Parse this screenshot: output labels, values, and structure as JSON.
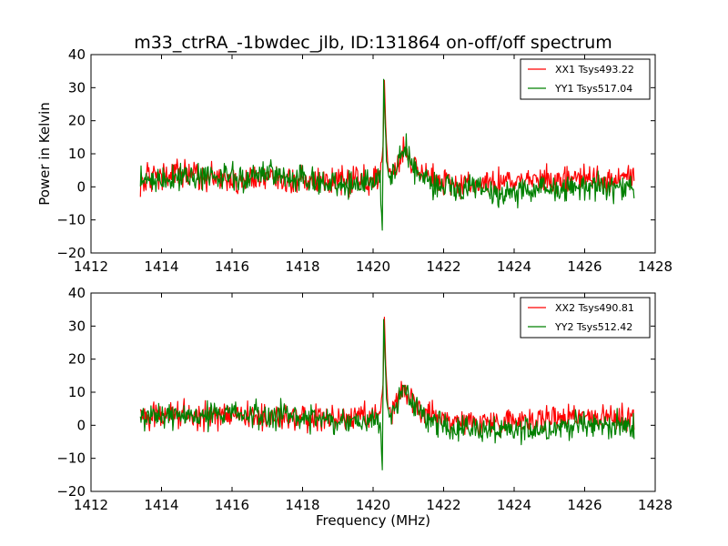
{
  "figure": {
    "title": "m33_ctrRA_-1bwdec_jlb, ID:131864 on-off/off spectrum",
    "xlabel": "Frequency (MHz)",
    "ylabel": "Power in Kelvin"
  },
  "chart_data": [
    {
      "type": "line",
      "xlim": [
        1412,
        1428
      ],
      "ylim": [
        -20,
        40
      ],
      "xticks": [
        1412,
        1414,
        1416,
        1418,
        1420,
        1422,
        1424,
        1426,
        1428
      ],
      "yticks": [
        -20,
        -10,
        0,
        10,
        20,
        30,
        40
      ],
      "legend": "top-right",
      "grid": false,
      "series": [
        {
          "name": "XX1 Tsys493.22",
          "color": "#ff0000",
          "x": [
            1413.4,
            1414.0,
            1414.5,
            1415.0,
            1415.5,
            1416.0,
            1416.5,
            1417.0,
            1417.5,
            1418.0,
            1418.5,
            1419.0,
            1419.5,
            1420.0,
            1420.2,
            1420.28,
            1420.32,
            1420.36,
            1420.42,
            1420.5,
            1420.7,
            1420.85,
            1421.0,
            1421.3,
            1421.6,
            1422.0,
            1422.5,
            1423.0,
            1423.5,
            1424.0,
            1424.5,
            1425.0,
            1425.5,
            1426.0,
            1426.5,
            1427.0,
            1427.4
          ],
          "y": [
            2,
            3,
            4,
            3,
            3,
            2,
            3,
            3,
            2,
            2,
            2,
            2,
            2,
            2,
            3,
            12,
            32,
            18,
            6,
            3,
            7,
            12,
            8,
            5,
            3,
            2,
            1,
            1,
            1,
            2,
            2,
            2,
            2,
            3,
            2,
            2,
            3
          ]
        },
        {
          "name": "YY1 Tsys517.04",
          "color": "#008000",
          "x": [
            1413.4,
            1414.0,
            1414.5,
            1415.0,
            1415.5,
            1416.0,
            1416.5,
            1417.0,
            1417.5,
            1418.0,
            1418.5,
            1419.0,
            1419.5,
            1420.0,
            1420.2,
            1420.26,
            1420.3,
            1420.34,
            1420.38,
            1420.45,
            1420.55,
            1420.75,
            1420.9,
            1421.1,
            1421.4,
            1421.7,
            1422.0,
            1422.5,
            1423.0,
            1423.5,
            1424.0,
            1424.5,
            1425.0,
            1425.5,
            1426.0,
            1426.5,
            1427.0,
            1427.4
          ],
          "y": [
            2,
            2,
            3,
            3,
            3,
            3,
            3,
            4,
            3,
            2,
            2,
            1,
            1,
            1,
            2,
            -13,
            32,
            20,
            8,
            3,
            4,
            9,
            12,
            6,
            3,
            1,
            0,
            -1,
            -1,
            -2,
            -2,
            -1,
            -1,
            0,
            0,
            0,
            0,
            -1
          ]
        }
      ]
    },
    {
      "type": "line",
      "xlim": [
        1412,
        1428
      ],
      "ylim": [
        -20,
        40
      ],
      "xticks": [
        1412,
        1414,
        1416,
        1418,
        1420,
        1422,
        1424,
        1426,
        1428
      ],
      "yticks": [
        -20,
        -10,
        0,
        10,
        20,
        30,
        40
      ],
      "legend": "top-right",
      "grid": false,
      "series": [
        {
          "name": "XX2 Tsys490.81",
          "color": "#ff0000",
          "x": [
            1413.4,
            1414.0,
            1414.5,
            1415.0,
            1415.5,
            1416.0,
            1416.5,
            1417.0,
            1417.5,
            1418.0,
            1418.5,
            1419.0,
            1419.5,
            1420.0,
            1420.2,
            1420.28,
            1420.32,
            1420.36,
            1420.42,
            1420.5,
            1420.7,
            1420.85,
            1421.0,
            1421.3,
            1421.6,
            1422.0,
            1422.5,
            1423.0,
            1423.5,
            1424.0,
            1424.5,
            1425.0,
            1425.5,
            1426.0,
            1426.5,
            1427.0,
            1427.4
          ],
          "y": [
            3,
            3,
            3,
            3,
            3,
            3,
            3,
            2,
            2,
            2,
            2,
            2,
            2,
            2,
            3,
            12,
            32,
            18,
            6,
            3,
            7,
            12,
            8,
            5,
            3,
            2,
            1,
            1,
            1,
            2,
            2,
            2,
            3,
            3,
            2,
            2,
            3
          ]
        },
        {
          "name": "YY2 Tsys512.42",
          "color": "#008000",
          "x": [
            1413.4,
            1414.0,
            1414.5,
            1415.0,
            1415.5,
            1416.0,
            1416.5,
            1417.0,
            1417.5,
            1418.0,
            1418.5,
            1419.0,
            1419.5,
            1420.0,
            1420.2,
            1420.26,
            1420.3,
            1420.34,
            1420.38,
            1420.45,
            1420.55,
            1420.75,
            1420.9,
            1421.1,
            1421.4,
            1421.7,
            1422.0,
            1422.5,
            1423.0,
            1423.5,
            1424.0,
            1424.5,
            1425.0,
            1425.5,
            1426.0,
            1426.5,
            1427.0,
            1427.4
          ],
          "y": [
            2,
            2,
            3,
            3,
            3,
            4,
            4,
            3,
            3,
            2,
            2,
            1,
            1,
            1,
            2,
            -13,
            32,
            20,
            8,
            3,
            4,
            9,
            12,
            6,
            3,
            1,
            0,
            -1,
            -1,
            -2,
            -2,
            -1,
            -1,
            0,
            0,
            0,
            0,
            -1
          ]
        }
      ]
    }
  ]
}
